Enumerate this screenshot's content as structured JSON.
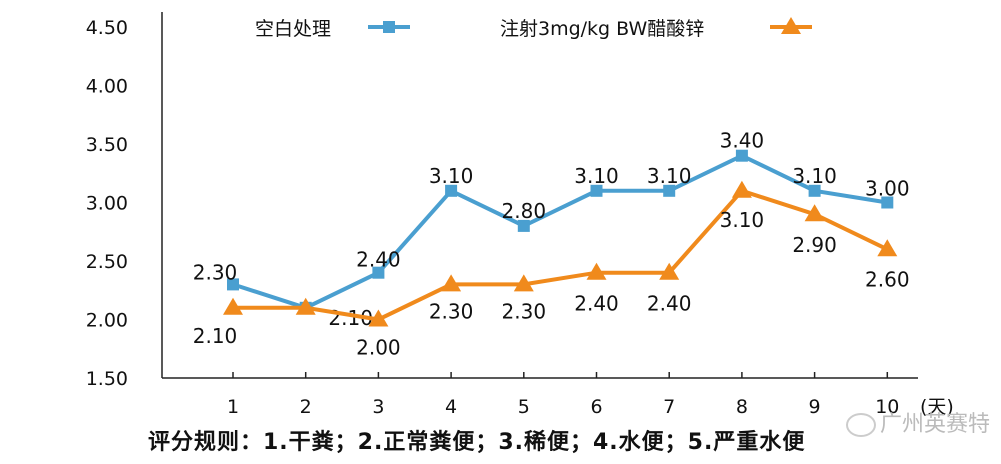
{
  "chart_data": {
    "type": "line",
    "x": [
      "1",
      "2",
      "3",
      "4",
      "5",
      "6",
      "7",
      "8",
      "9",
      "10"
    ],
    "x_unit": "(天)",
    "ylim": [
      1.5,
      4.5
    ],
    "yticks": [
      "1.50",
      "2.00",
      "2.50",
      "3.00",
      "3.50",
      "4.00",
      "4.50"
    ],
    "legend_position": "top",
    "grid": false,
    "series": [
      {
        "name": "空白处理",
        "color": "#4a9fd0",
        "marker": "square",
        "values": [
          2.3,
          2.1,
          2.4,
          3.1,
          2.8,
          3.1,
          3.1,
          3.4,
          3.1,
          3.0
        ],
        "labels": [
          "2.30",
          "2.10",
          "2.40",
          "3.10",
          "2.80",
          "3.10",
          "3.10",
          "3.40",
          "3.10",
          "3.00"
        ]
      },
      {
        "name": "注射3mg/kg BW醋酸锌",
        "color": "#f08a1c",
        "marker": "triangle",
        "values": [
          2.1,
          2.1,
          2.0,
          2.3,
          2.3,
          2.4,
          2.4,
          3.1,
          2.9,
          2.6
        ],
        "labels": [
          "2.10",
          "",
          "2.00",
          "2.30",
          "2.30",
          "2.40",
          "2.40",
          "3.10",
          "2.90",
          "2.60"
        ]
      }
    ]
  },
  "footer": "评分规则：1.干粪；2.正常粪便；3.稀便；4.水便；5.严重水便",
  "watermark": "广州英赛特"
}
